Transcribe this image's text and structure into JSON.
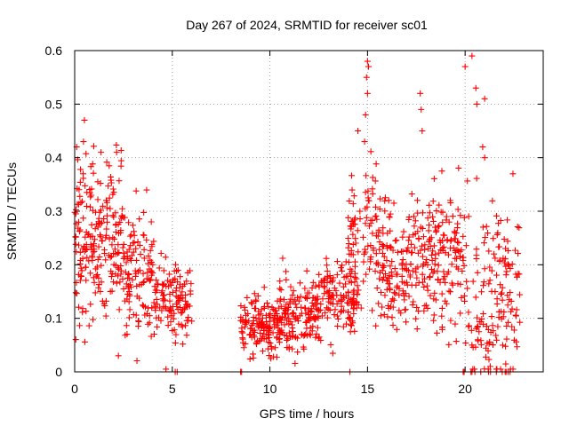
{
  "chart_data": {
    "type": "scatter",
    "title": "Day 267 of 2024, SRMTID for receiver sc01",
    "xlabel": "GPS time / hours",
    "ylabel": "SRMTID / TECUs",
    "xlim": [
      0,
      24
    ],
    "ylim": [
      0,
      0.6
    ],
    "grid": true,
    "marker": "+",
    "color": "#ff0000",
    "x_ticks": [
      0,
      5,
      10,
      15,
      20
    ],
    "x_tick_labels": [
      "0",
      "5",
      "10",
      "15",
      "20"
    ],
    "y_ticks": [
      0,
      0.1,
      0.2,
      0.3,
      0.4,
      0.5,
      0.6
    ],
    "y_tick_labels": [
      "0",
      "0.1",
      "0.2",
      "0.3",
      "0.4",
      "0.5",
      "0.6"
    ],
    "segments": [
      {
        "x_range": [
          0.0,
          1.0
        ],
        "y_mean": 0.25,
        "y_sd": 0.08,
        "count": 95
      },
      {
        "x_range": [
          1.0,
          2.5
        ],
        "y_mean": 0.24,
        "y_sd": 0.07,
        "count": 120
      },
      {
        "x_range": [
          2.5,
          4.0
        ],
        "y_mean": 0.19,
        "y_sd": 0.06,
        "count": 110
      },
      {
        "x_range": [
          4.0,
          6.0
        ],
        "y_mean": 0.13,
        "y_sd": 0.035,
        "count": 120
      },
      {
        "x_range": [
          8.5,
          10.5
        ],
        "y_mean": 0.09,
        "y_sd": 0.025,
        "count": 150
      },
      {
        "x_range": [
          10.5,
          12.5
        ],
        "y_mean": 0.11,
        "y_sd": 0.03,
        "count": 150
      },
      {
        "x_range": [
          12.5,
          14.5
        ],
        "y_mean": 0.14,
        "y_sd": 0.035,
        "count": 130
      },
      {
        "x_range": [
          14.0,
          15.5
        ],
        "y_mean": 0.25,
        "y_sd": 0.07,
        "count": 90
      },
      {
        "x_range": [
          15.5,
          17.5
        ],
        "y_mean": 0.2,
        "y_sd": 0.06,
        "count": 140
      },
      {
        "x_range": [
          17.5,
          20.0
        ],
        "y_mean": 0.21,
        "y_sd": 0.06,
        "count": 170
      },
      {
        "x_range": [
          20.0,
          22.8
        ],
        "y_mean": 0.13,
        "y_sd": 0.09,
        "count": 150
      }
    ],
    "outliers": [
      {
        "x": 0.5,
        "y": 0.47
      },
      {
        "x": 0.45,
        "y": 0.43
      },
      {
        "x": 0.1,
        "y": 0.42
      },
      {
        "x": 1.35,
        "y": 0.41
      },
      {
        "x": 2.15,
        "y": 0.41
      },
      {
        "x": 15.0,
        "y": 0.58
      },
      {
        "x": 15.05,
        "y": 0.57
      },
      {
        "x": 14.95,
        "y": 0.55
      },
      {
        "x": 15.0,
        "y": 0.52
      },
      {
        "x": 14.9,
        "y": 0.48
      },
      {
        "x": 14.85,
        "y": 0.43
      },
      {
        "x": 17.7,
        "y": 0.52
      },
      {
        "x": 17.75,
        "y": 0.49
      },
      {
        "x": 17.8,
        "y": 0.45
      },
      {
        "x": 20.0,
        "y": 0.57
      },
      {
        "x": 20.35,
        "y": 0.59
      },
      {
        "x": 20.55,
        "y": 0.53
      },
      {
        "x": 20.6,
        "y": 0.5
      },
      {
        "x": 21.0,
        "y": 0.51
      },
      {
        "x": 22.45,
        "y": 0.37
      },
      {
        "x": 20.9,
        "y": 0.42
      },
      {
        "x": 21.0,
        "y": 0.4
      }
    ],
    "zero_points_x": [
      5.15,
      5.25,
      8.5,
      8.55,
      14.1,
      19.9,
      19.95,
      20.3,
      20.35,
      20.5,
      20.8,
      21.2,
      21.3,
      21.6,
      21.9,
      22.05,
      22.1,
      22.2,
      22.3
    ]
  }
}
